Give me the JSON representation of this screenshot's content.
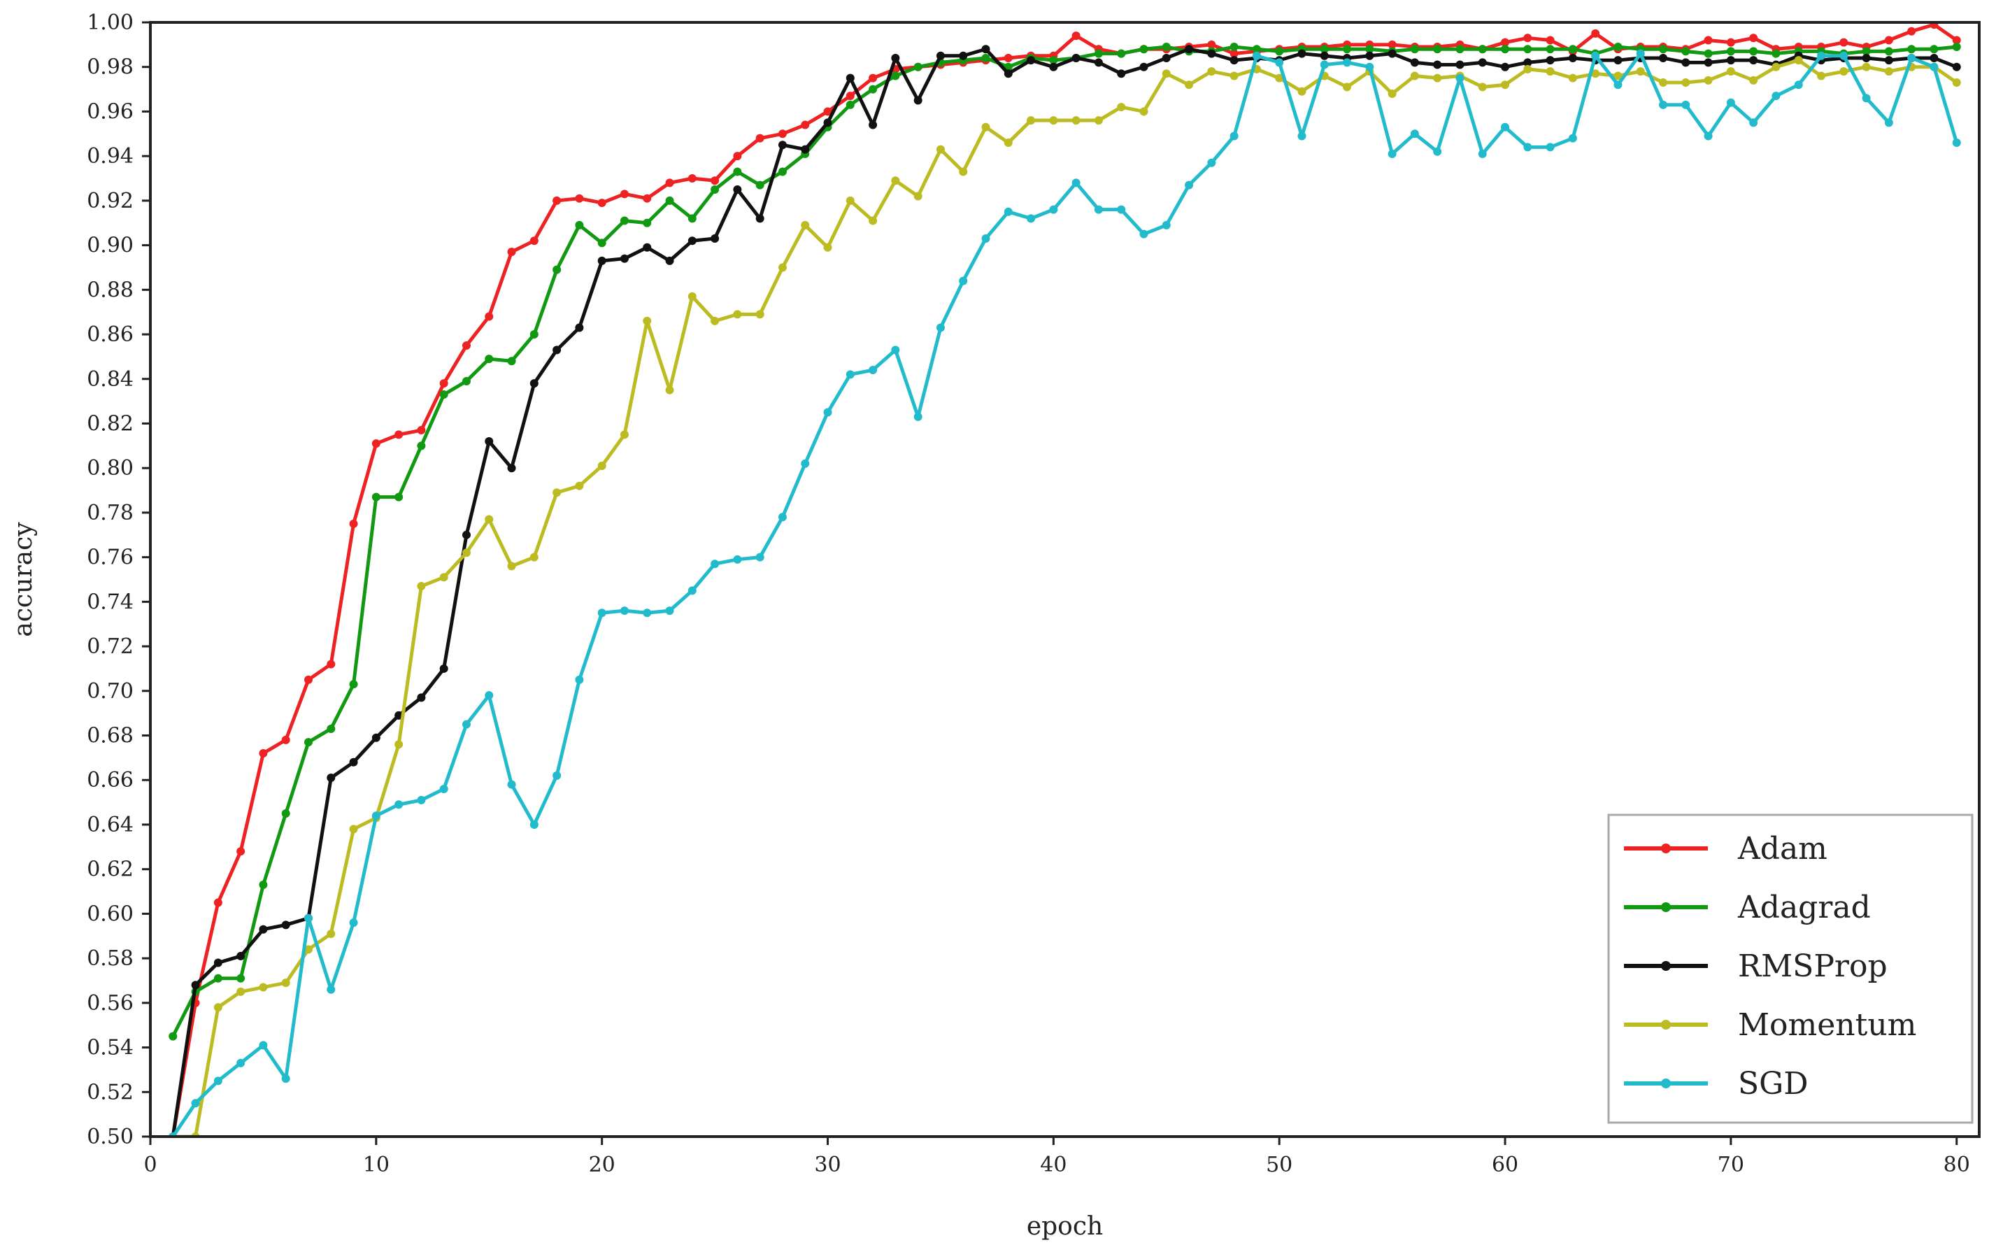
{
  "chart_data": {
    "type": "line",
    "xlabel": "epoch",
    "ylabel": "accuracy",
    "xlim": [
      0,
      81
    ],
    "ylim": [
      0.5,
      1.0
    ],
    "x_ticks": [
      0,
      10,
      20,
      30,
      40,
      50,
      60,
      70,
      80
    ],
    "y_ticks": [
      0.5,
      0.52,
      0.54,
      0.56,
      0.58,
      0.6,
      0.62,
      0.64,
      0.66,
      0.68,
      0.7,
      0.72,
      0.74,
      0.76,
      0.78,
      0.8,
      0.82,
      0.84,
      0.86,
      0.88,
      0.9,
      0.92,
      0.94,
      0.96,
      0.98,
      1.0
    ],
    "grid": false,
    "legend_position": "bottom-right",
    "x": [
      1,
      2,
      3,
      4,
      5,
      6,
      7,
      8,
      9,
      10,
      11,
      12,
      13,
      14,
      15,
      16,
      17,
      18,
      19,
      20,
      21,
      22,
      23,
      24,
      25,
      26,
      27,
      28,
      29,
      30,
      31,
      32,
      33,
      34,
      35,
      36,
      37,
      38,
      39,
      40,
      41,
      42,
      43,
      44,
      45,
      46,
      47,
      48,
      49,
      50,
      51,
      52,
      53,
      54,
      55,
      56,
      57,
      58,
      59,
      60,
      61,
      62,
      63,
      64,
      65,
      66,
      67,
      68,
      69,
      70,
      71,
      72,
      73,
      74,
      75,
      76,
      77,
      78,
      79,
      80
    ],
    "series": [
      {
        "name": "Adam",
        "color": "#ee2222",
        "values": [
          0.5,
          0.56,
          0.605,
          0.628,
          0.672,
          0.678,
          0.705,
          0.712,
          0.775,
          0.811,
          0.815,
          0.817,
          0.838,
          0.855,
          0.868,
          0.897,
          0.902,
          0.92,
          0.921,
          0.919,
          0.923,
          0.921,
          0.928,
          0.93,
          0.929,
          0.94,
          0.948,
          0.95,
          0.954,
          0.96,
          0.967,
          0.975,
          0.979,
          0.98,
          0.981,
          0.982,
          0.983,
          0.984,
          0.985,
          0.985,
          0.994,
          0.988,
          0.986,
          0.988,
          0.988,
          0.989,
          0.99,
          0.986,
          0.987,
          0.988,
          0.989,
          0.989,
          0.99,
          0.99,
          0.99,
          0.989,
          0.989,
          0.99,
          0.988,
          0.991,
          0.993,
          0.992,
          0.987,
          0.995,
          0.988,
          0.989,
          0.989,
          0.988,
          0.992,
          0.991,
          0.993,
          0.988,
          0.989,
          0.989,
          0.991,
          0.989,
          0.992,
          0.996,
          0.999,
          0.992
        ]
      },
      {
        "name": "Adagrad",
        "color": "#119911",
        "values": [
          0.545,
          0.565,
          0.571,
          0.571,
          0.613,
          0.645,
          0.677,
          0.683,
          0.703,
          0.787,
          0.787,
          0.81,
          0.833,
          0.839,
          0.849,
          0.848,
          0.86,
          0.889,
          0.909,
          0.901,
          0.911,
          0.91,
          0.92,
          0.912,
          0.925,
          0.933,
          0.927,
          0.933,
          0.941,
          0.953,
          0.963,
          0.97,
          0.976,
          0.98,
          0.982,
          0.983,
          0.984,
          0.98,
          0.984,
          0.983,
          0.984,
          0.986,
          0.986,
          0.988,
          0.989,
          0.987,
          0.987,
          0.989,
          0.988,
          0.987,
          0.988,
          0.988,
          0.988,
          0.988,
          0.987,
          0.988,
          0.988,
          0.988,
          0.988,
          0.988,
          0.988,
          0.988,
          0.988,
          0.986,
          0.989,
          0.988,
          0.988,
          0.987,
          0.986,
          0.987,
          0.987,
          0.986,
          0.987,
          0.987,
          0.986,
          0.987,
          0.987,
          0.988,
          0.988,
          0.989
        ]
      },
      {
        "name": "RMSProp",
        "color": "#111111",
        "values": [
          0.5,
          0.568,
          0.578,
          0.581,
          0.593,
          0.595,
          0.598,
          0.661,
          0.668,
          0.679,
          0.689,
          0.697,
          0.71,
          0.77,
          0.812,
          0.8,
          0.838,
          0.853,
          0.863,
          0.893,
          0.894,
          0.899,
          0.893,
          0.902,
          0.903,
          0.925,
          0.912,
          0.945,
          0.943,
          0.955,
          0.975,
          0.954,
          0.984,
          0.965,
          0.985,
          0.985,
          0.988,
          0.977,
          0.983,
          0.98,
          0.984,
          0.982,
          0.977,
          0.98,
          0.984,
          0.988,
          0.986,
          0.983,
          0.984,
          0.983,
          0.986,
          0.985,
          0.984,
          0.985,
          0.986,
          0.982,
          0.981,
          0.981,
          0.982,
          0.98,
          0.982,
          0.983,
          0.984,
          0.983,
          0.983,
          0.984,
          0.984,
          0.982,
          0.982,
          0.983,
          0.983,
          0.981,
          0.985,
          0.983,
          0.984,
          0.984,
          0.983,
          0.984,
          0.984,
          0.98
        ]
      },
      {
        "name": "Momentum",
        "color": "#bcbc22",
        "values": [
          0.495,
          0.495,
          0.558,
          0.565,
          0.567,
          0.569,
          0.584,
          0.591,
          0.638,
          0.643,
          0.676,
          0.747,
          0.751,
          0.762,
          0.777,
          0.756,
          0.76,
          0.789,
          0.792,
          0.801,
          0.815,
          0.866,
          0.835,
          0.877,
          0.866,
          0.869,
          0.869,
          0.89,
          0.909,
          0.899,
          0.92,
          0.911,
          0.929,
          0.922,
          0.943,
          0.933,
          0.953,
          0.946,
          0.956,
          0.956,
          0.956,
          0.956,
          0.962,
          0.96,
          0.977,
          0.972,
          0.978,
          0.976,
          0.979,
          0.975,
          0.969,
          0.976,
          0.971,
          0.978,
          0.968,
          0.976,
          0.975,
          0.976,
          0.971,
          0.972,
          0.979,
          0.978,
          0.975,
          0.977,
          0.976,
          0.978,
          0.973,
          0.973,
          0.974,
          0.978,
          0.974,
          0.98,
          0.983,
          0.976,
          0.978,
          0.98,
          0.978,
          0.98,
          0.98,
          0.973
        ]
      },
      {
        "name": "SGD",
        "color": "#22bbcc",
        "values": [
          0.48,
          0.515,
          0.525,
          0.533,
          0.541,
          0.526,
          0.598,
          0.566,
          0.596,
          0.644,
          0.649,
          0.651,
          0.656,
          0.685,
          0.698,
          0.658,
          0.64,
          0.662,
          0.705,
          0.735,
          0.736,
          0.735,
          0.736,
          0.745,
          0.757,
          0.759,
          0.76,
          0.778,
          0.802,
          0.825,
          0.842,
          0.844,
          0.853,
          0.823,
          0.863,
          0.884,
          0.903,
          0.915,
          0.912,
          0.916,
          0.928,
          0.916,
          0.916,
          0.905,
          0.909,
          0.927,
          0.937,
          0.949,
          0.985,
          0.982,
          0.949,
          0.981,
          0.982,
          0.98,
          0.941,
          0.95,
          0.942,
          0.975,
          0.941,
          0.953,
          0.944,
          0.944,
          0.948,
          0.985,
          0.972,
          0.986,
          0.963,
          0.963,
          0.949,
          0.964,
          0.955,
          0.967,
          0.972,
          0.985,
          0.985,
          0.966,
          0.955,
          0.984,
          0.98,
          0.946
        ]
      }
    ]
  }
}
